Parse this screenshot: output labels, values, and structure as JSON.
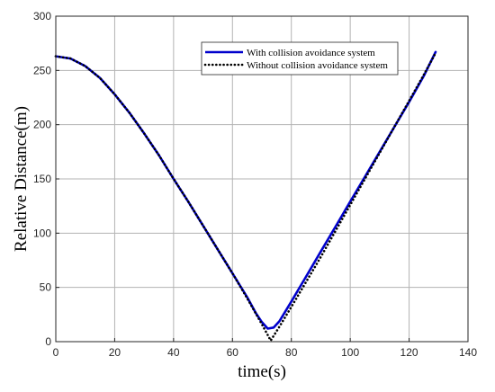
{
  "chart_data": {
    "type": "line",
    "title": "",
    "xlabel": "time(s)",
    "ylabel": "Relative Distance(m)",
    "xlim": [
      0,
      140
    ],
    "ylim": [
      0,
      300
    ],
    "xticks": [
      0,
      20,
      40,
      60,
      80,
      100,
      120,
      140
    ],
    "yticks": [
      0,
      50,
      100,
      150,
      200,
      250,
      300
    ],
    "grid": true,
    "legend_position": "top-right",
    "series": [
      {
        "name": "With collision avoidance system",
        "color": "#0000cc",
        "style": "solid",
        "x": [
          0,
          5,
          10,
          15,
          20,
          25,
          30,
          35,
          40,
          45,
          50,
          55,
          60,
          65,
          68,
          70,
          72,
          74,
          76,
          80,
          85,
          90,
          95,
          100,
          105,
          110,
          115,
          120,
          125,
          129
        ],
        "y": [
          263,
          261,
          254,
          243,
          228,
          211,
          192,
          172,
          150,
          129,
          107,
          85,
          63,
          41,
          26,
          18,
          12,
          13,
          19,
          37,
          60,
          83,
          106,
          129,
          152,
          175,
          198,
          221,
          245,
          267
        ]
      },
      {
        "name": "Without collision avoidance system",
        "color": "#000000",
        "style": "dotted",
        "x": [
          0,
          5,
          10,
          15,
          20,
          25,
          30,
          35,
          40,
          45,
          50,
          55,
          60,
          65,
          70,
          73,
          76,
          80,
          85,
          90,
          95,
          100,
          105,
          110,
          115,
          120,
          125,
          129
        ],
        "y": [
          263,
          261,
          254,
          243,
          228,
          211,
          192,
          172,
          150,
          129,
          107,
          85,
          63,
          40,
          16,
          1,
          14,
          32,
          55,
          78,
          102,
          126,
          150,
          174,
          198,
          222,
          246,
          266
        ]
      }
    ]
  }
}
